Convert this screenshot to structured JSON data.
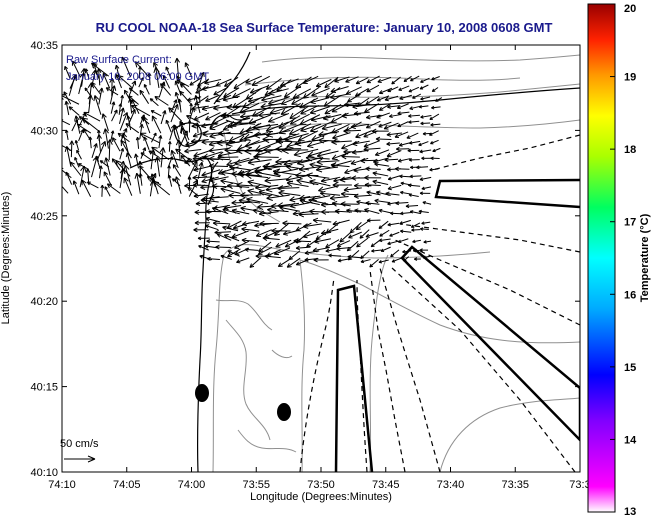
{
  "chart_data": {
    "type": "map",
    "title": "RU COOL  NOAA-18  Sea Surface Temperature:  January 10, 2008 0608 GMT",
    "xlabel": "Longitude (Degrees:Minutes)",
    "ylabel": "Latitude (Degrees:Minutes)",
    "x_ticks": [
      "74:10",
      "74:05",
      "74:00",
      "73:55",
      "73:50",
      "73:45",
      "73:40",
      "73:35",
      "73:3"
    ],
    "y_ticks": [
      "40:10",
      "40:15",
      "40:20",
      "40:25",
      "40:30",
      "40:35"
    ],
    "annotation": {
      "line1": "Raw Surface Current:",
      "line2": "January 10, 2008 06:00 GMT"
    },
    "scale_label": "50 cm/s",
    "colorbar": {
      "label": "Temperature (°C)",
      "ticks": [
        "13",
        "14",
        "15",
        "16",
        "17",
        "18",
        "19",
        "20"
      ],
      "range": [
        13,
        20
      ]
    },
    "colors": {
      "title": "#1a1a8c",
      "coast": "#000000",
      "contour": "#909090",
      "vector": "#000000"
    }
  }
}
